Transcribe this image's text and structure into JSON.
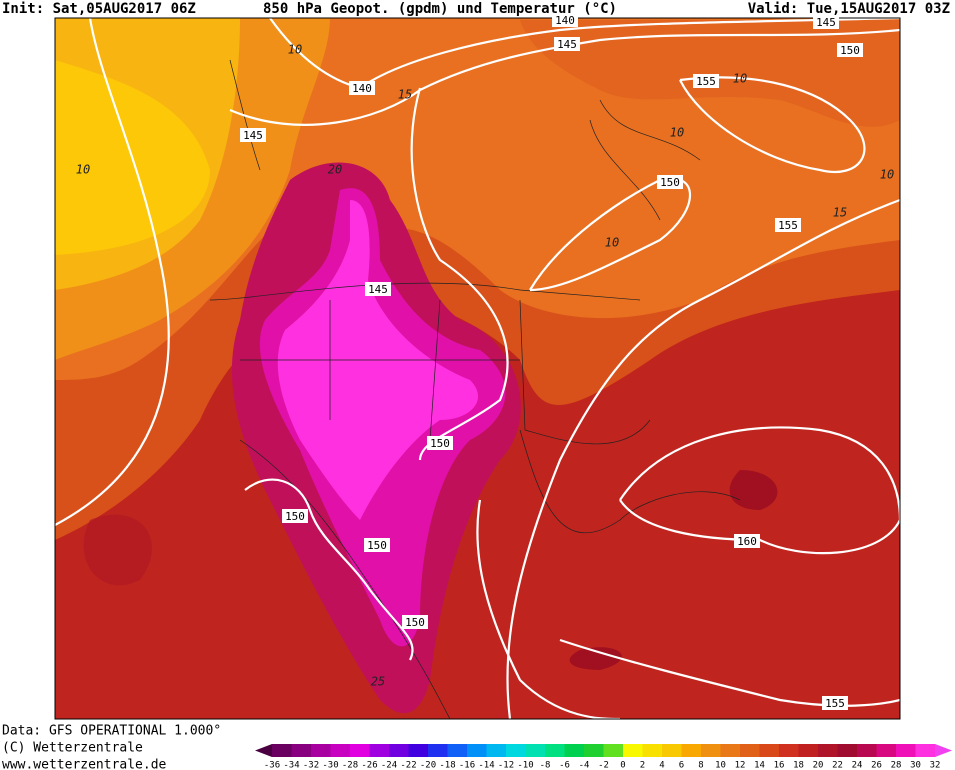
{
  "header": {
    "init": "Init: Sat,05AUG2017 06Z",
    "title": "850 hPa Geopot. (gpdm) und Temperatur (°C)",
    "valid": "Valid: Tue,15AUG2017 03Z"
  },
  "footer": {
    "data": "Data: GFS OPERATIONAL 1.000°",
    "copyright": "(C) Wetterzentrale",
    "website": "www.wetterzentrale.de"
  },
  "geopotential_labels": [
    "140",
    "145",
    "145",
    "150",
    "155",
    "140",
    "145",
    "150",
    "155",
    "145",
    "150",
    "150",
    "150",
    "160",
    "150",
    "155"
  ],
  "temperature_labels": [
    "10",
    "15",
    "10",
    "10",
    "10",
    "10",
    "20",
    "10",
    "15",
    "25"
  ],
  "colorbar": {
    "ticks": [
      -36,
      -34,
      -32,
      -30,
      -28,
      -26,
      -24,
      -22,
      -20,
      -18,
      -16,
      -14,
      -12,
      -10,
      -8,
      -6,
      -4,
      -2,
      0,
      2,
      4,
      6,
      8,
      10,
      12,
      14,
      16,
      18,
      20,
      22,
      24,
      26,
      28,
      30,
      32
    ],
    "colors": [
      "#4a0040",
      "#6a0060",
      "#880080",
      "#a800a0",
      "#c800c0",
      "#e000e0",
      "#a000e0",
      "#7000e0",
      "#4000e0",
      "#2030f0",
      "#1060f8",
      "#0090f8",
      "#00b8f0",
      "#00d8e0",
      "#00e0b0",
      "#00e080",
      "#00d050",
      "#20d030",
      "#60e020",
      "#f8f800",
      "#f8e000",
      "#f8c800",
      "#f8a800",
      "#f09010",
      "#e87818",
      "#e06018",
      "#d84818",
      "#d03020",
      "#c02020",
      "#b01428",
      "#a00c30",
      "#b80850",
      "#d80880",
      "#f010b8",
      "#ff30e0",
      "#f040f0"
    ]
  }
}
